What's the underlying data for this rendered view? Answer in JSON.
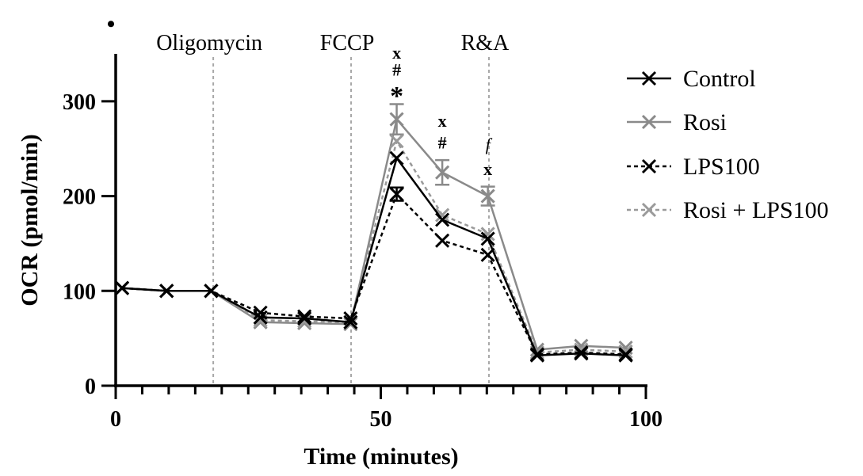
{
  "chart_data": {
    "type": "line",
    "corner_mark": "•",
    "xlabel": "Time (minutes)",
    "ylabel": "OCR (pmol/min)",
    "xlim": [
      0,
      100
    ],
    "ylim": [
      0,
      350
    ],
    "xticks": [
      0,
      50,
      100
    ],
    "yticks": [
      0,
      100,
      200,
      300
    ],
    "grid": false,
    "legend_position": "right",
    "x": [
      1.2,
      9.6,
      18.0,
      27.3,
      35.6,
      44.3,
      53.0,
      61.6,
      70.2,
      79.5,
      87.8,
      96.2
    ],
    "series": [
      {
        "name": "Control",
        "color": "#000000",
        "dash": "solid",
        "values": [
          103,
          100,
          100,
          72,
          71,
          67,
          240,
          175,
          155,
          32,
          34,
          32
        ],
        "errors": [
          0,
          0,
          0,
          0,
          0,
          0,
          0,
          0,
          0,
          0,
          0,
          0
        ]
      },
      {
        "name": "Rosi",
        "color": "#8a8a8a",
        "dash": "solid",
        "values": [
          103,
          100,
          100,
          67,
          66,
          65,
          281,
          225,
          200,
          38,
          42,
          40
        ],
        "errors": [
          0,
          0,
          0,
          0,
          0,
          0,
          16,
          13,
          10,
          0,
          0,
          0
        ]
      },
      {
        "name": "LPS100",
        "color": "#000000",
        "dash": "dotted",
        "values": [
          103,
          100,
          100,
          77,
          73,
          71,
          202,
          153,
          138,
          33,
          35,
          33
        ],
        "errors": [
          0,
          0,
          0,
          0,
          0,
          0,
          7,
          0,
          0,
          0,
          0,
          0
        ]
      },
      {
        "name": "Rosi + LPS100",
        "color": "#9a9a9a",
        "dash": "dotted",
        "values": [
          103,
          100,
          100,
          69,
          68,
          67,
          258,
          180,
          160,
          35,
          38,
          36
        ],
        "errors": [
          0,
          0,
          0,
          0,
          0,
          0,
          0,
          0,
          0,
          0,
          0,
          0
        ]
      }
    ],
    "injections": [
      {
        "label": "Oligomycin",
        "x": 18.4
      },
      {
        "label": "FCCP",
        "x": 44.4
      },
      {
        "label": "R&A",
        "x": 70.4
      }
    ],
    "annotations": [
      {
        "text": "x",
        "x": 53.0,
        "y": 345,
        "italic": false,
        "bold": true
      },
      {
        "text": "#",
        "x": 53.0,
        "y": 327,
        "italic": false,
        "bold": true
      },
      {
        "text": "*",
        "x": 53.0,
        "y": 305,
        "italic": false,
        "bold": true
      },
      {
        "text": "x",
        "x": 61.6,
        "y": 273,
        "italic": false,
        "bold": true
      },
      {
        "text": "#",
        "x": 61.6,
        "y": 250,
        "italic": false,
        "bold": true
      },
      {
        "text": "f",
        "x": 70.2,
        "y": 248,
        "italic": true,
        "bold": false
      },
      {
        "text": "x",
        "x": 70.2,
        "y": 222,
        "italic": false,
        "bold": true
      }
    ]
  }
}
